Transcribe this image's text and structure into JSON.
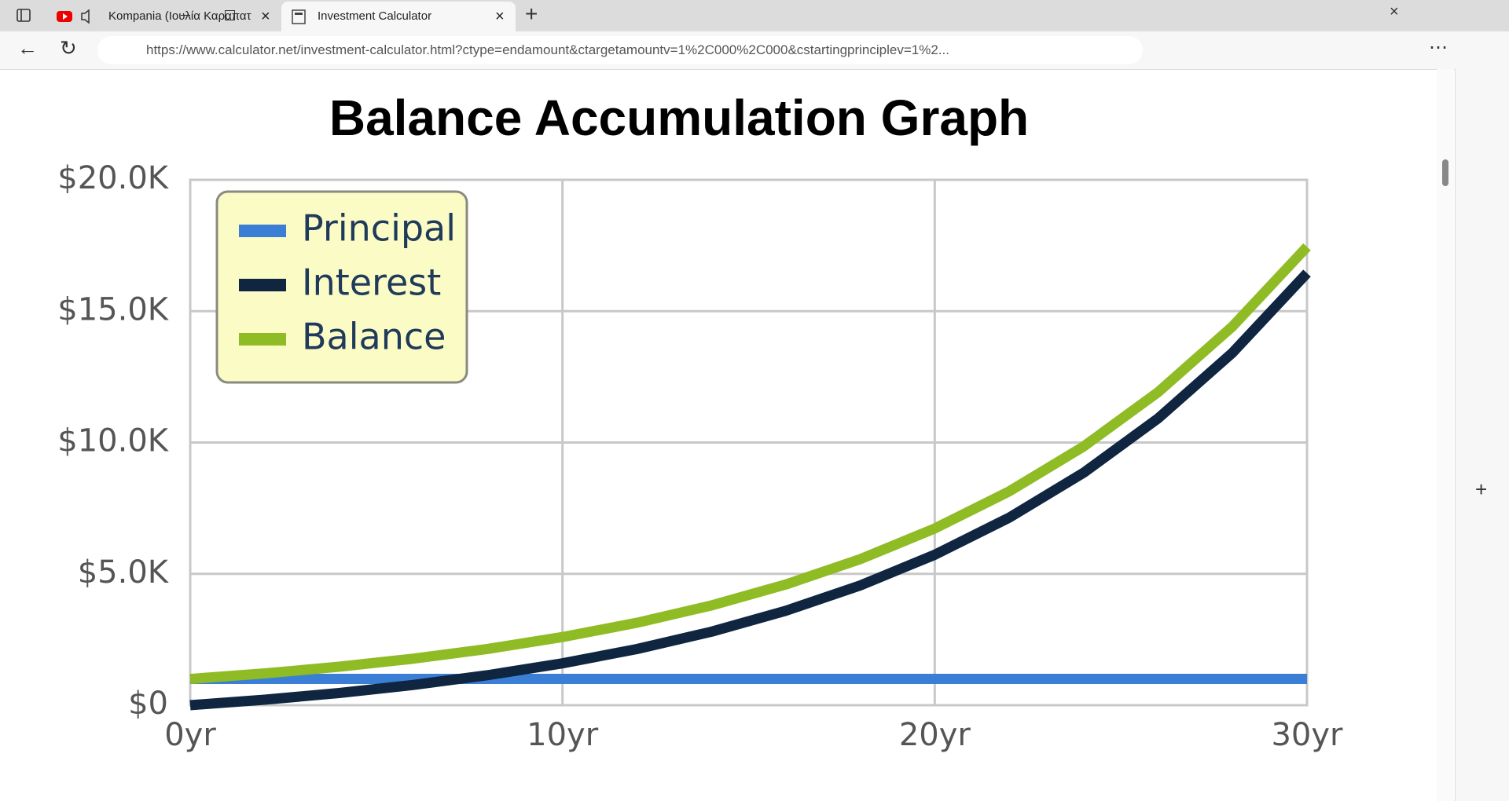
{
  "browser": {
    "tabs": [
      "Kompania (Ιουλία Καραπατ",
      "Investment Calculator"
    ],
    "url": "https://www.calculator.net/investment-calculator.html?ctype=endamount&ctargetamountv=1%2C000%2C000&cstartingprinciplev=1%2..."
  },
  "chart_data": {
    "type": "line",
    "title": "Balance Accumulation Graph",
    "x": [
      0,
      2,
      4,
      6,
      8,
      10,
      12,
      14,
      16,
      18,
      20,
      22,
      24,
      26,
      28,
      30
    ],
    "series": [
      {
        "name": "Principal",
        "color": "#3a7fd5",
        "values": [
          1000,
          1000,
          1000,
          1000,
          1000,
          1000,
          1000,
          1000,
          1000,
          1000,
          1000,
          1000,
          1000,
          1000,
          1000,
          1000
        ]
      },
      {
        "name": "Interest",
        "color": "#0f2540",
        "values": [
          0,
          210,
          464,
          772,
          1144,
          1594,
          2138,
          2797,
          3595,
          4560,
          5727,
          7140,
          8850,
          10918,
          13421,
          16449
        ]
      },
      {
        "name": "Balance",
        "color": "#8fbc24",
        "values": [
          1000,
          1210,
          1464,
          1772,
          2144,
          2594,
          3138,
          3797,
          4595,
          5560,
          6727,
          8140,
          9850,
          11918,
          14421,
          17449
        ]
      }
    ],
    "xlim": [
      0,
      30
    ],
    "xticks": [
      {
        "value": 0,
        "label": "0yr"
      },
      {
        "value": 10,
        "label": "10yr"
      },
      {
        "value": 20,
        "label": "20yr"
      },
      {
        "value": 30,
        "label": "30yr"
      }
    ],
    "ylim": [
      0,
      20000
    ],
    "yticks": [
      {
        "value": 0,
        "label": "$0"
      },
      {
        "value": 5000,
        "label": "$5.0K"
      },
      {
        "value": 10000,
        "label": "$10.0K"
      },
      {
        "value": 15000,
        "label": "$15.0K"
      },
      {
        "value": 20000,
        "label": "$20.0K"
      }
    ],
    "grid": true,
    "legend": "upper left"
  }
}
